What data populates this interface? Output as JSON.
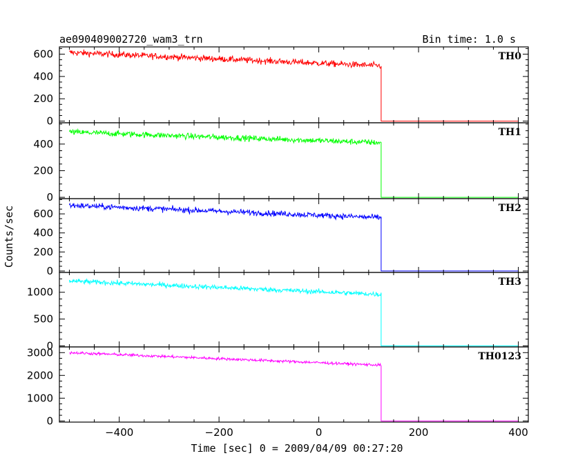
{
  "chart_data": {
    "type": "line",
    "title_left": "ae090409002720_wam3_trn",
    "title_right": "Bin time: 1.0 s",
    "xlabel": "Time [sec] 0 = 2009/04/09 00:27:20",
    "ylabel": "Counts/sec",
    "xlim": [
      -520,
      420
    ],
    "x_ticks": [
      -400,
      -200,
      0,
      200,
      400
    ],
    "x_tick_labels": [
      "−400",
      "−200",
      "0",
      "200",
      "400"
    ],
    "drop_time": 125,
    "series": [
      {
        "name": "TH0",
        "color": "#ff0000",
        "start": 615,
        "end": 495,
        "noise": 28,
        "ylim": [
          -15,
          665
        ],
        "yticks": [
          0,
          200,
          400,
          600
        ]
      },
      {
        "name": "TH1",
        "color": "#00ff00",
        "start": 490,
        "end": 410,
        "noise": 22,
        "ylim": [
          -10,
          560
        ],
        "yticks": [
          0,
          200,
          400
        ]
      },
      {
        "name": "TH2",
        "color": "#0000ff",
        "start": 690,
        "end": 560,
        "noise": 30,
        "ylim": [
          -15,
          760
        ],
        "yticks": [
          0,
          200,
          400,
          600
        ]
      },
      {
        "name": "TH3",
        "color": "#00ffff",
        "start": 1210,
        "end": 960,
        "noise": 45,
        "ylim": [
          -20,
          1370
        ],
        "yticks": [
          0,
          500,
          1000
        ]
      },
      {
        "name": "TH0123",
        "color": "#ff00ff",
        "start": 3000,
        "end": 2450,
        "noise": 60,
        "ylim": [
          -50,
          3250
        ],
        "yticks": [
          0,
          1000,
          2000,
          3000
        ]
      }
    ]
  }
}
